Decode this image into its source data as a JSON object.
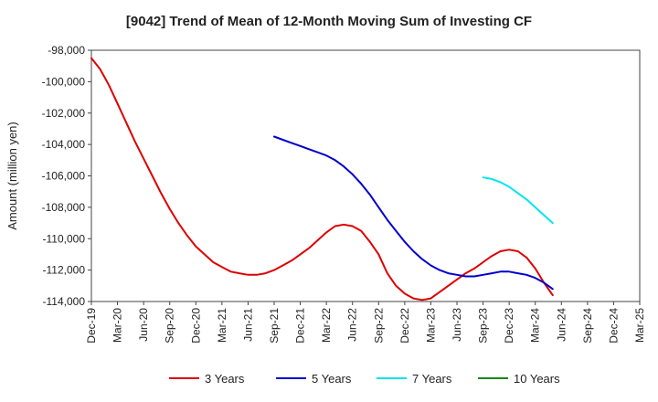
{
  "chart_data": {
    "type": "line",
    "title": "[9042]  Trend of Mean of 12-Month Moving Sum of Investing CF",
    "ylabel": "Amount (million yen)",
    "xlabel": "",
    "ylim": [
      -114000,
      -98000
    ],
    "yticks": [
      -98000,
      -100000,
      -102000,
      -104000,
      -106000,
      -108000,
      -110000,
      -112000,
      -114000
    ],
    "ytick_labels": [
      "-98,000",
      "-100,000",
      "-102,000",
      "-104,000",
      "-106,000",
      "-108,000",
      "-110,000",
      "-112,000",
      "-114,000"
    ],
    "xticks": [
      "Dec-19",
      "Mar-20",
      "Jun-20",
      "Sep-20",
      "Dec-20",
      "Mar-21",
      "Jun-21",
      "Sep-21",
      "Dec-21",
      "Mar-22",
      "Jun-22",
      "Sep-22",
      "Dec-22",
      "Mar-23",
      "Jun-23",
      "Sep-23",
      "Dec-23",
      "Mar-24",
      "Jun-24",
      "Sep-24",
      "Dec-24",
      "Mar-25"
    ],
    "grid": true,
    "legend_position": "bottom",
    "series": [
      {
        "name": "3 Years",
        "color": "#dd0000",
        "points": [
          [
            0,
            -98500
          ],
          [
            1,
            -99200
          ],
          [
            2,
            -100200
          ],
          [
            3,
            -101400
          ],
          [
            4,
            -102600
          ],
          [
            5,
            -103800
          ],
          [
            6,
            -104900
          ],
          [
            7,
            -106000
          ],
          [
            8,
            -107100
          ],
          [
            9,
            -108100
          ],
          [
            10,
            -109000
          ],
          [
            11,
            -109800
          ],
          [
            12,
            -110500
          ],
          [
            13,
            -111000
          ],
          [
            14,
            -111500
          ],
          [
            15,
            -111800
          ],
          [
            16,
            -112100
          ],
          [
            17,
            -112200
          ],
          [
            18,
            -112300
          ],
          [
            19,
            -112300
          ],
          [
            20,
            -112200
          ],
          [
            21,
            -112000
          ],
          [
            22,
            -111700
          ],
          [
            23,
            -111400
          ],
          [
            24,
            -111000
          ],
          [
            25,
            -110600
          ],
          [
            26,
            -110100
          ],
          [
            27,
            -109600
          ],
          [
            28,
            -109200
          ],
          [
            29,
            -109100
          ],
          [
            30,
            -109200
          ],
          [
            31,
            -109500
          ],
          [
            32,
            -110200
          ],
          [
            33,
            -111000
          ],
          [
            34,
            -112200
          ],
          [
            35,
            -113000
          ],
          [
            36,
            -113500
          ],
          [
            37,
            -113800
          ],
          [
            38,
            -113900
          ],
          [
            39,
            -113800
          ],
          [
            40,
            -113400
          ],
          [
            41,
            -113000
          ],
          [
            42,
            -112600
          ],
          [
            43,
            -112200
          ],
          [
            44,
            -111900
          ],
          [
            45,
            -111500
          ],
          [
            46,
            -111100
          ],
          [
            47,
            -110800
          ],
          [
            48,
            -110700
          ],
          [
            49,
            -110800
          ],
          [
            50,
            -111200
          ],
          [
            51,
            -111900
          ],
          [
            52,
            -112800
          ],
          [
            53,
            -113600
          ]
        ]
      },
      {
        "name": "5 Years",
        "color": "#0000cc",
        "points": [
          [
            21,
            -103500
          ],
          [
            22,
            -103700
          ],
          [
            23,
            -103900
          ],
          [
            24,
            -104100
          ],
          [
            25,
            -104300
          ],
          [
            26,
            -104500
          ],
          [
            27,
            -104700
          ],
          [
            28,
            -105000
          ],
          [
            29,
            -105400
          ],
          [
            30,
            -105900
          ],
          [
            31,
            -106500
          ],
          [
            32,
            -107200
          ],
          [
            33,
            -108000
          ],
          [
            34,
            -108800
          ],
          [
            35,
            -109500
          ],
          [
            36,
            -110200
          ],
          [
            37,
            -110800
          ],
          [
            38,
            -111300
          ],
          [
            39,
            -111700
          ],
          [
            40,
            -112000
          ],
          [
            41,
            -112200
          ],
          [
            42,
            -112300
          ],
          [
            43,
            -112400
          ],
          [
            44,
            -112400
          ],
          [
            45,
            -112300
          ],
          [
            46,
            -112200
          ],
          [
            47,
            -112100
          ],
          [
            48,
            -112100
          ],
          [
            49,
            -112200
          ],
          [
            50,
            -112300
          ],
          [
            51,
            -112500
          ],
          [
            52,
            -112800
          ],
          [
            53,
            -113200
          ]
        ]
      },
      {
        "name": "7 Years",
        "color": "#00e5ee",
        "points": [
          [
            45,
            -106100
          ],
          [
            46,
            -106200
          ],
          [
            47,
            -106400
          ],
          [
            48,
            -106700
          ],
          [
            49,
            -107100
          ],
          [
            50,
            -107500
          ],
          [
            51,
            -108000
          ],
          [
            52,
            -108500
          ],
          [
            53,
            -109000
          ]
        ]
      },
      {
        "name": "10 Years",
        "color": "#118811",
        "points": []
      }
    ]
  }
}
